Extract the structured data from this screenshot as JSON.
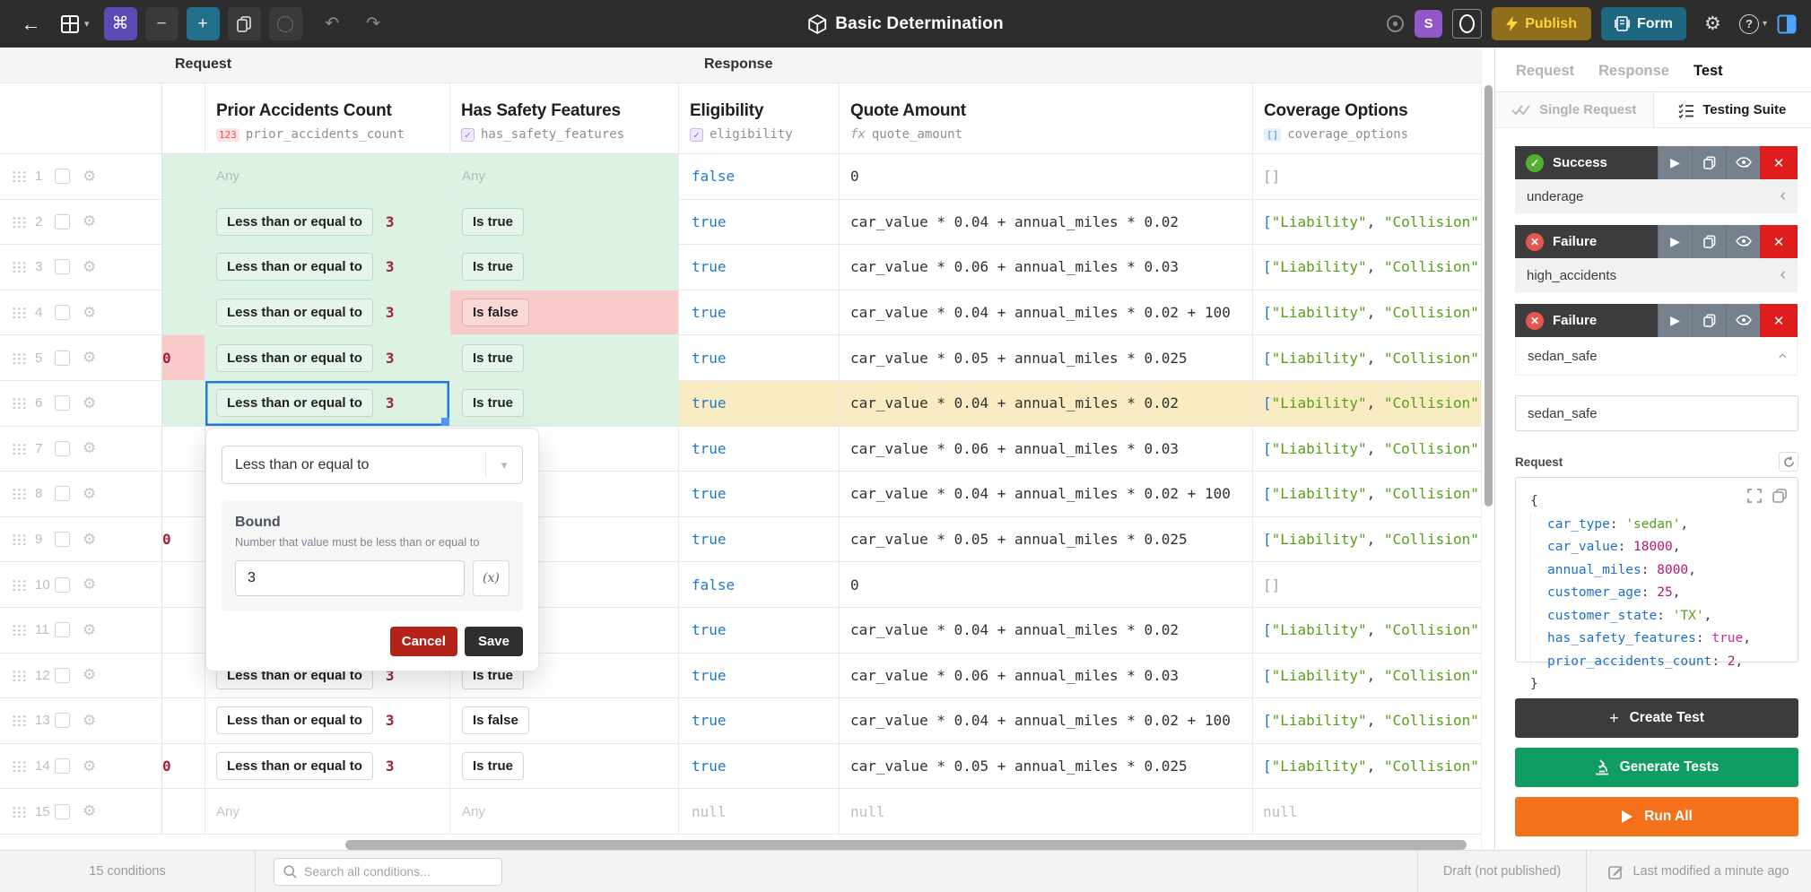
{
  "topbar": {
    "title": "Basic Determination",
    "publish_label": "Publish",
    "form_label": "Form",
    "avatar_initial": "S",
    "icons": {
      "back": "←",
      "command": "⌘",
      "minus": "−",
      "plus": "+",
      "undo": "↶",
      "redo": "↷",
      "gear": "⚙",
      "help": "?",
      "table_chevron": "▾",
      "help_chevron": "▾"
    }
  },
  "table": {
    "request_group": "Request",
    "response_group": "Response",
    "columns": [
      {
        "title": "Prior Accidents Count",
        "field": "prior_accidents_count",
        "badge": "123"
      },
      {
        "title": "Has Safety Features",
        "field": "has_safety_features",
        "badge": "✓"
      },
      {
        "title": "Eligibility",
        "field": "eligibility",
        "badge": "✓"
      },
      {
        "title": "Quote Amount",
        "field": "quote_amount",
        "badge": "fx"
      },
      {
        "title": "Coverage Options",
        "field": "coverage_options",
        "badge": "[]"
      }
    ],
    "op_label": "Less than or equal to",
    "bound_value": "3",
    "true_chip": "Is true",
    "false_chip": "Is false",
    "any_label": "Any",
    "null_label": "null",
    "cov_empty": "[]",
    "cov_tokens": [
      {
        "t": "p",
        "s": "["
      },
      {
        "t": "s",
        "s": "\"Liability\""
      },
      {
        "t": "pd",
        "s": ", "
      },
      {
        "t": "s",
        "s": "\"Collision\""
      },
      {
        "t": "pd",
        "s": ","
      }
    ],
    "rows": [
      {
        "n": "1",
        "sliver": "g",
        "prior": "any",
        "pbg": "g",
        "safety": "any",
        "sbg": "g",
        "elig": "false",
        "quote": "0",
        "cov": "empty"
      },
      {
        "n": "2",
        "sliver": "g",
        "prior": "op",
        "pbg": "g",
        "safety": "true",
        "sbg": "g",
        "elig": "true",
        "quote": "car_value * 0.04 + annual_miles * 0.02",
        "cov": "list"
      },
      {
        "n": "3",
        "sliver": "g",
        "prior": "op",
        "pbg": "g",
        "safety": "true",
        "sbg": "g",
        "elig": "true",
        "quote": "car_value * 0.06 + annual_miles * 0.03",
        "cov": "list"
      },
      {
        "n": "4",
        "sliver": "g",
        "prior": "op",
        "pbg": "g",
        "safety": "false",
        "sbg": "r",
        "elig": "true",
        "quote": "car_value * 0.04 + annual_miles * 0.02 + 100",
        "cov": "list"
      },
      {
        "n": "5",
        "sliver": "rf",
        "prior": "op",
        "pbg": "g",
        "safety": "true",
        "sbg": "g",
        "elig": "true",
        "quote": "car_value * 0.05 + annual_miles * 0.025",
        "cov": "list"
      },
      {
        "n": "6",
        "sliver": "g",
        "prior": "op",
        "pbg": "g",
        "sel": true,
        "safety": "true",
        "sbg": "g",
        "elig": "true",
        "quote": "car_value * 0.04 + annual_miles * 0.02",
        "cov": "list",
        "hl": true
      },
      {
        "n": "7",
        "sliver": "w",
        "prior": null,
        "safety": null,
        "elig": "true",
        "quote": "car_value * 0.06 + annual_miles * 0.03",
        "cov": "list"
      },
      {
        "n": "8",
        "sliver": "w",
        "prior": null,
        "safety": null,
        "elig": "true",
        "quote": "car_value * 0.04 + annual_miles * 0.02 + 100",
        "cov": "list"
      },
      {
        "n": "9",
        "sliver": "wf",
        "prior": null,
        "safety": null,
        "elig": "true",
        "quote": "car_value * 0.05 + annual_miles * 0.025",
        "cov": "list"
      },
      {
        "n": "10",
        "sliver": "w",
        "prior": null,
        "safety": null,
        "elig": "false",
        "quote": "0",
        "cov": "empty"
      },
      {
        "n": "11",
        "sliver": "w",
        "prior": null,
        "safety": null,
        "elig": "true",
        "quote": "car_value * 0.04 + annual_miles * 0.02",
        "cov": "list"
      },
      {
        "n": "12",
        "sliver": "w",
        "prior": "op",
        "pbg": "w",
        "safety": "true",
        "sbg": "w",
        "elig": "true",
        "quote": "car_value * 0.06 + annual_miles * 0.03",
        "cov": "list"
      },
      {
        "n": "13",
        "sliver": "w",
        "prior": "op",
        "pbg": "w",
        "safety": "false",
        "sbg": "w",
        "elig": "true",
        "quote": "car_value * 0.04 + annual_miles * 0.02 + 100",
        "cov": "list"
      },
      {
        "n": "14",
        "sliver": "wf",
        "prior": "op",
        "pbg": "w",
        "safety": "true",
        "sbg": "w",
        "elig": "true",
        "quote": "car_value * 0.05 + annual_miles * 0.025",
        "cov": "list"
      },
      {
        "n": "15",
        "sliver": "w",
        "prior": "any",
        "pbg": "w",
        "safety": "any",
        "sbg": "w",
        "elig": "null",
        "quote": "null",
        "cov": "null"
      }
    ]
  },
  "editor_popup": {
    "operator": "Less than or equal to",
    "section_title": "Bound",
    "section_help": "Number that value must be less than or equal to",
    "value": "3",
    "fx_label": "(x)",
    "cancel_label": "Cancel",
    "save_label": "Save"
  },
  "sidebar": {
    "tabs": [
      "Request",
      "Response",
      "Test"
    ],
    "mode_single": "Single Request",
    "mode_suite": "Testing Suite",
    "tests": [
      {
        "status": "Success",
        "name": "underage"
      },
      {
        "status": "Failure",
        "name": "high_accidents"
      },
      {
        "status": "Failure",
        "name": "sedan_safe"
      }
    ],
    "test_name_value": "sedan_safe",
    "request_label": "Request",
    "code": {
      "open": "{",
      "close": "}",
      "lines": [
        {
          "k": "car_type",
          "v": "'sedan'",
          "t": "str"
        },
        {
          "k": "car_value",
          "v": "18000",
          "t": "num"
        },
        {
          "k": "annual_miles",
          "v": "8000",
          "t": "num"
        },
        {
          "k": "customer_age",
          "v": "25",
          "t": "num"
        },
        {
          "k": "customer_state",
          "v": "'TX'",
          "t": "str"
        },
        {
          "k": "has_safety_features",
          "v": "true",
          "t": "bool"
        },
        {
          "k": "prior_accidents_count",
          "v": "2",
          "t": "num"
        }
      ]
    },
    "create_test_label": "Create Test",
    "generate_tests_label": "Generate Tests",
    "run_all_label": "Run All"
  },
  "statusbar": {
    "conditions_count": "15 conditions",
    "search_placeholder": "Search all conditions...",
    "draft_label": "Draft (not published)",
    "modified_label": "Last modified a minute ago"
  }
}
